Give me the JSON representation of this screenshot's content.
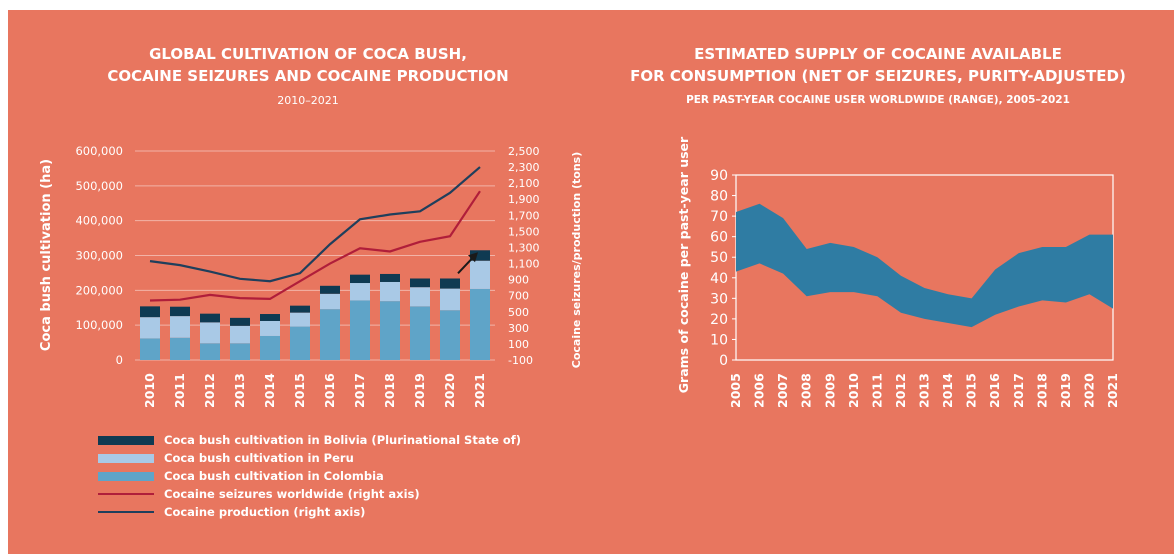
{
  "left_chart": {
    "title_line1": "GLOBAL CULTIVATION OF COCA BUSH,",
    "title_line2": "COCAINE SEIZURES AND COCAINE PRODUCTION",
    "subtitle": "2010–2021",
    "ylabel_left": "Coca bush cultivation (ha)",
    "ylabel_right": "Cocaine seizures/production (tons)"
  },
  "right_chart": {
    "title_line1": "ESTIMATED SUPPLY OF COCAINE AVAILABLE",
    "title_line2": "FOR CONSUMPTION (NET OF SEIZURES, PURITY-ADJUSTED)",
    "subtitle": "PER PAST-YEAR COCAINE USER WORLDWIDE (RANGE), 2005–2021",
    "ylabel": "Grams of cocaine per past-year user"
  },
  "colors": {
    "panel": "#e8765f",
    "bolivia": "#0f3a52",
    "peru": "#a9c9e6",
    "colombia": "#5fa4c8",
    "seizures": "#b01e3a",
    "production": "#1f3f5c",
    "range_band": "#2f7ca3"
  },
  "chart_data": [
    {
      "type": "bar",
      "stacked": true,
      "categories": [
        "2010",
        "2011",
        "2012",
        "2013",
        "2014",
        "2015",
        "2016",
        "2017",
        "2018",
        "2019",
        "2020",
        "2021"
      ],
      "left_axis": {
        "label": "Coca bush cultivation (ha)",
        "ylim": [
          0,
          600000
        ],
        "ticks": [
          "0",
          "100,000",
          "200,000",
          "300,000",
          "400,000",
          "500,000",
          "600,000"
        ]
      },
      "right_axis": {
        "label": "Cocaine seizures/production (tons)",
        "ylim": [
          -100,
          2500
        ],
        "ticks": [
          "-100",
          "100",
          "300",
          "500",
          "700",
          "900",
          "1,100",
          "1,300",
          "1,500",
          "1,700",
          "1,900",
          "2,100",
          "2,300",
          "2,500"
        ]
      },
      "series": [
        {
          "name": "Coca bush cultivation in Colombia",
          "axis": "left",
          "values": [
            62000,
            64000,
            48000,
            48000,
            69000,
            96000,
            146000,
            171000,
            169000,
            154000,
            143000,
            204000
          ]
        },
        {
          "name": "Coca bush cultivation in Peru",
          "axis": "left",
          "values": [
            61000,
            62000,
            60000,
            50000,
            43000,
            40000,
            44000,
            50000,
            55000,
            55000,
            62000,
            81000
          ]
        },
        {
          "name": "Coca bush cultivation in Bolivia (Plurinational State of)",
          "axis": "left",
          "values": [
            31000,
            27000,
            25000,
            23000,
            20000,
            20000,
            23000,
            24000,
            23000,
            25000,
            29000,
            30000
          ]
        },
        {
          "name": "Cocaine seizures worldwide (right axis)",
          "axis": "right",
          "kind": "line",
          "values": [
            640,
            650,
            710,
            670,
            660,
            880,
            1100,
            1290,
            1250,
            1370,
            1440,
            2000
          ]
        },
        {
          "name": "Cocaine production (right axis)",
          "axis": "right",
          "kind": "line",
          "values": [
            1130,
            1080,
            1000,
            910,
            880,
            980,
            1340,
            1650,
            1710,
            1750,
            1980,
            2300
          ]
        }
      ],
      "legend": [
        {
          "label": "Coca bush cultivation in Bolivia (Plurinational State of)",
          "swatch": "bar",
          "color": "#0f3a52"
        },
        {
          "label": "Coca bush cultivation in Peru",
          "swatch": "bar",
          "color": "#a9c9e6"
        },
        {
          "label": "Coca bush cultivation in Colombia",
          "swatch": "bar",
          "color": "#5fa4c8"
        },
        {
          "label": "Cocaine seizures worldwide (right axis)",
          "swatch": "line",
          "color": "#b01e3a"
        },
        {
          "label": "Cocaine production (right axis)",
          "swatch": "line",
          "color": "#1f3f5c"
        }
      ],
      "grid": true,
      "legend_placement": "bottom-left"
    },
    {
      "type": "area",
      "range": true,
      "ylabel": "Grams of cocaine per past-year user",
      "ylim": [
        0,
        90
      ],
      "yticks": [
        "0",
        "10",
        "20",
        "30",
        "40",
        "50",
        "60",
        "70",
        "80",
        "90"
      ],
      "x": [
        "2005",
        "2006",
        "2007",
        "2008",
        "2009",
        "2010",
        "2011",
        "2012",
        "2013",
        "2014",
        "2015",
        "2016",
        "2017",
        "2018",
        "2019",
        "2020",
        "2021"
      ],
      "series": [
        {
          "role": "upper",
          "values": [
            72,
            76,
            69,
            54,
            57,
            55,
            50,
            41,
            35,
            32,
            30,
            44,
            52,
            55,
            55,
            61,
            61
          ]
        },
        {
          "role": "lower",
          "values": [
            43,
            47,
            42,
            31,
            33,
            33,
            31,
            23,
            20,
            18,
            16,
            22,
            26,
            29,
            28,
            32,
            25
          ]
        }
      ],
      "grid": false
    }
  ]
}
